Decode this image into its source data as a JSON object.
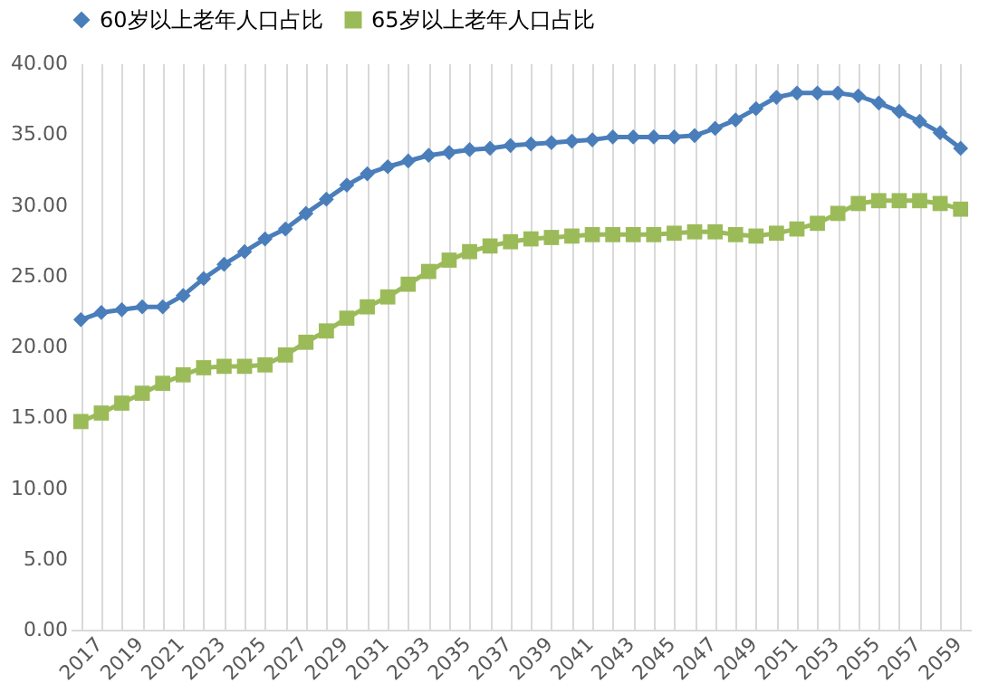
{
  "chart_data": {
    "type": "line",
    "categories": [
      "2017",
      null,
      "2019",
      null,
      "2021",
      null,
      "2023",
      null,
      "2025",
      null,
      "2027",
      null,
      "2029",
      null,
      "2031",
      null,
      "2033",
      null,
      "2035",
      null,
      "2037",
      null,
      "2039",
      null,
      "2041",
      null,
      "2043",
      null,
      "2045",
      null,
      "2047",
      null,
      "2049",
      null,
      "2051",
      null,
      "2053",
      null,
      "2055",
      null,
      "2057",
      null,
      "2059",
      null
    ],
    "series": [
      {
        "name": "60岁以上老年人口占比",
        "color": "#4a7ebb",
        "marker": "diamond",
        "values": [
          21.9,
          22.4,
          22.6,
          22.8,
          22.8,
          23.6,
          24.8,
          25.8,
          26.7,
          27.6,
          28.3,
          29.4,
          30.4,
          31.4,
          32.2,
          32.7,
          33.1,
          33.5,
          33.7,
          33.9,
          34.0,
          34.2,
          34.3,
          34.4,
          34.5,
          34.6,
          34.8,
          34.8,
          34.8,
          34.8,
          34.9,
          35.4,
          36.0,
          36.8,
          37.6,
          37.9,
          37.9,
          37.9,
          37.7,
          37.2,
          36.6,
          35.9,
          35.1,
          34.0
        ]
      },
      {
        "name": "65岁以上老年人口占比",
        "color": "#9bbb59",
        "marker": "square",
        "values": [
          14.7,
          15.3,
          16.0,
          16.7,
          17.4,
          18.0,
          18.5,
          18.6,
          18.6,
          18.7,
          19.4,
          20.3,
          21.1,
          22.0,
          22.8,
          23.5,
          24.4,
          25.3,
          26.1,
          26.7,
          27.1,
          27.4,
          27.6,
          27.7,
          27.8,
          27.9,
          27.9,
          27.9,
          27.9,
          28.0,
          28.1,
          28.1,
          27.9,
          27.8,
          28.0,
          28.3,
          28.7,
          29.4,
          30.1,
          30.3,
          30.3,
          30.3,
          30.1,
          29.7
        ]
      }
    ],
    "ylim": [
      0,
      40
    ],
    "yticks": [
      {
        "value": 0,
        "label": "0.00"
      },
      {
        "value": 5,
        "label": "5.00"
      },
      {
        "value": 10,
        "label": "10.00"
      },
      {
        "value": 15,
        "label": "15.00"
      },
      {
        "value": 20,
        "label": "20.00"
      },
      {
        "value": 25,
        "label": "25.00"
      },
      {
        "value": 30,
        "label": "30.00"
      },
      {
        "value": 35,
        "label": "35.00"
      },
      {
        "value": 40,
        "label": "40.00"
      }
    ],
    "grid": "x",
    "legend": "top",
    "line_style": "solid"
  }
}
